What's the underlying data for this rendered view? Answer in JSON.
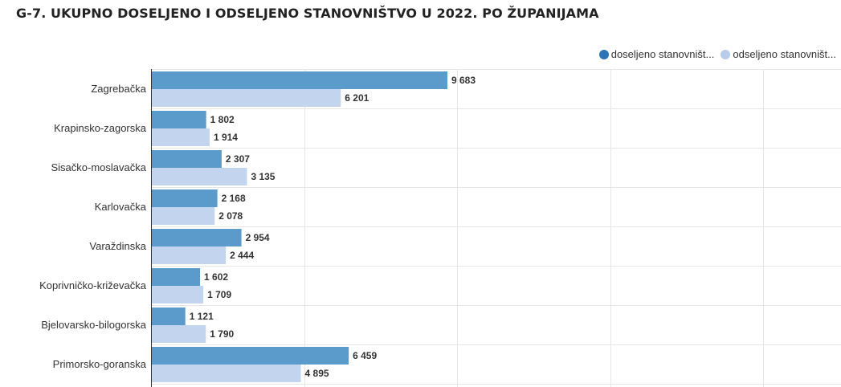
{
  "title": "G-7. UKUPNO DOSELJENO I ODSELJENO STANOVNIŠTVO U 2022. PO ŽUPANIJAMA",
  "legend": [
    {
      "label": "doseljeno stanovništ...",
      "color": "#2f74b5"
    },
    {
      "label": "odseljeno stanovništ...",
      "color": "#b7cce8"
    }
  ],
  "colors": {
    "immigrants_bar": "#5b9bcb",
    "emigrants_bar": "#c3d4ef",
    "grid": "#e6e6e6",
    "axis": "#333333"
  },
  "chart_data": {
    "type": "bar",
    "orientation": "horizontal",
    "title": "G-7. UKUPNO DOSELJENO I ODSELJENO STANOVNIŠTVO U 2022. PO ŽUPANIJAMA",
    "categories": [
      "Zagrebačka",
      "Krapinsko-zagorska",
      "Sisačko-moslavačka",
      "Karlovačka",
      "Varaždinska",
      "Koprivničko-križevačka",
      "Bjelovarsko-bilogorska",
      "Primorsko-goranska"
    ],
    "series": [
      {
        "name": "doseljeno stanovništ...",
        "values": [
          9683,
          1802,
          2307,
          2168,
          2954,
          1602,
          1121,
          6459
        ],
        "labels": [
          "9 683",
          "1 802",
          "2 307",
          "2 168",
          "2 954",
          "1 602",
          "1 121",
          "6 459"
        ]
      },
      {
        "name": "odseljeno stanovništ...",
        "values": [
          6201,
          1914,
          3135,
          2078,
          2444,
          1709,
          1790,
          4895
        ],
        "labels": [
          "6 201",
          "1 914",
          "3 135",
          "2 078",
          "2 444",
          "1 709",
          "1 790",
          "4 895"
        ]
      }
    ],
    "xlim": [
      0,
      22500
    ],
    "gridlines": [
      0,
      5000,
      10000,
      15000,
      20000
    ],
    "grid": true,
    "legend_position": "top-right"
  }
}
